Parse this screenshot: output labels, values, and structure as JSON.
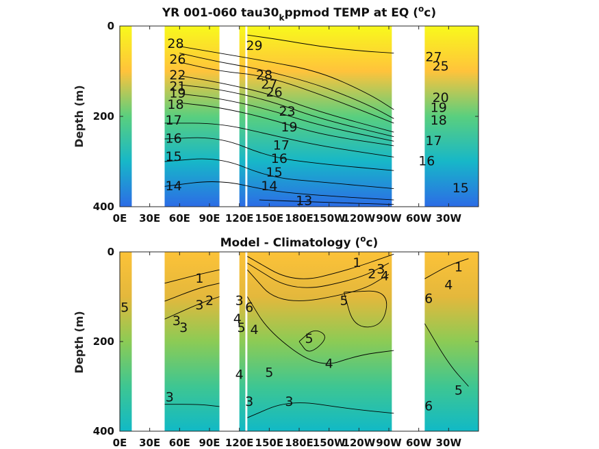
{
  "chart_data": [
    {
      "type": "heatmap",
      "title": "YR 001-060 tau30",
      "title_sub": "k",
      "title_rest": "ppmod TEMP at EQ (",
      "title_unit_sup": "o",
      "title_unit": "c)",
      "ylabel": "Depth (m)",
      "xlabel": "",
      "x_tick_labels": [
        "0E",
        "30E",
        "60E",
        "90E",
        "120E",
        "150E",
        "180E",
        "150W",
        "120W",
        "90W",
        "60W",
        "30W"
      ],
      "y_tick_labels": [
        "0",
        "200",
        "400"
      ],
      "xlim": [
        0,
        360
      ],
      "ylim": [
        400,
        0
      ],
      "no_data_gaps": [
        [
          12,
          45
        ],
        [
          100,
          120
        ],
        [
          126,
          128
        ],
        [
          273,
          306
        ]
      ],
      "colorscale": [
        "#2c6ce6",
        "#17b7c8",
        "#5acf7e",
        "#ffc33b",
        "#f8f91c"
      ],
      "contours": [
        {
          "label": "29",
          "path": [
            [
              128,
              20
            ],
            [
              160,
              30
            ],
            [
              200,
              45
            ],
            [
              240,
              55
            ],
            [
              275,
              60
            ]
          ]
        },
        {
          "label": "28",
          "path": [
            [
              60,
              45
            ],
            [
              100,
              60
            ],
            [
              140,
              75
            ],
            [
              200,
              100
            ],
            [
              250,
              150
            ],
            [
              275,
              185
            ]
          ]
        },
        {
          "label": "27",
          "path": [
            [
              60,
              60
            ],
            [
              100,
              80
            ],
            [
              140,
              95
            ],
            [
              200,
              130
            ],
            [
              250,
              175
            ],
            [
              275,
              205
            ]
          ]
        },
        {
          "label": "26",
          "path": [
            [
              60,
              80
            ],
            [
              100,
              100
            ],
            [
              145,
              110
            ],
            [
              200,
              150
            ],
            [
              275,
              215
            ]
          ]
        },
        {
          "label": "22",
          "path": [
            [
              60,
              110
            ],
            [
              100,
              125
            ],
            [
              150,
              150
            ],
            [
              200,
              190
            ],
            [
              275,
              235
            ]
          ]
        },
        {
          "label": "21",
          "path": [
            [
              60,
              130
            ],
            [
              100,
              140
            ],
            [
              150,
              165
            ],
            [
              200,
              205
            ],
            [
              275,
              245
            ]
          ]
        },
        {
          "label": "19",
          "path": [
            [
              60,
              150
            ],
            [
              100,
              160
            ],
            [
              150,
              185
            ],
            [
              200,
              220
            ],
            [
              275,
              255
            ]
          ]
        },
        {
          "label": "18",
          "path": [
            [
              60,
              170
            ],
            [
              100,
              180
            ],
            [
              150,
              205
            ],
            [
              200,
              240
            ],
            [
              275,
              265
            ]
          ]
        },
        {
          "label": "17",
          "path": [
            [
              45,
              215
            ],
            [
              100,
              215
            ],
            [
              150,
              240
            ],
            [
              200,
              265
            ],
            [
              275,
              290
            ]
          ]
        },
        {
          "label": "16",
          "path": [
            [
              45,
              250
            ],
            [
              100,
              245
            ],
            [
              150,
              290
            ],
            [
              200,
              305
            ],
            [
              275,
              320
            ]
          ]
        },
        {
          "label": "15",
          "path": [
            [
              45,
              300
            ],
            [
              100,
              290
            ],
            [
              150,
              335
            ],
            [
              200,
              345
            ],
            [
              275,
              360
            ]
          ]
        },
        {
          "label": "14",
          "path": [
            [
              45,
              355
            ],
            [
              100,
              340
            ],
            [
              150,
              365
            ],
            [
              200,
              375
            ],
            [
              275,
              385
            ]
          ]
        },
        {
          "label": "13",
          "path": [
            [
              140,
              385
            ],
            [
              200,
              390
            ],
            [
              275,
              395
            ]
          ]
        }
      ],
      "labels": [
        {
          "text": "29",
          "x": 135,
          "y": 45
        },
        {
          "text": "28",
          "x": 56,
          "y": 40
        },
        {
          "text": "26",
          "x": 58,
          "y": 75
        },
        {
          "text": "22",
          "x": 58,
          "y": 110
        },
        {
          "text": "21",
          "x": 58,
          "y": 135
        },
        {
          "text": "19",
          "x": 58,
          "y": 150
        },
        {
          "text": "18",
          "x": 56,
          "y": 175
        },
        {
          "text": "17",
          "x": 54,
          "y": 210
        },
        {
          "text": "16",
          "x": 54,
          "y": 250
        },
        {
          "text": "15",
          "x": 54,
          "y": 290
        },
        {
          "text": "14",
          "x": 54,
          "y": 355
        },
        {
          "text": "28",
          "x": 145,
          "y": 110
        },
        {
          "text": "27",
          "x": 150,
          "y": 130
        },
        {
          "text": "26",
          "x": 155,
          "y": 148
        },
        {
          "text": "23",
          "x": 168,
          "y": 190
        },
        {
          "text": "19",
          "x": 170,
          "y": 225
        },
        {
          "text": "17",
          "x": 162,
          "y": 265
        },
        {
          "text": "16",
          "x": 160,
          "y": 295
        },
        {
          "text": "15",
          "x": 155,
          "y": 325
        },
        {
          "text": "14",
          "x": 150,
          "y": 355
        },
        {
          "text": "13",
          "x": 185,
          "y": 388
        },
        {
          "text": "27",
          "x": 315,
          "y": 70
        },
        {
          "text": "25",
          "x": 322,
          "y": 90
        },
        {
          "text": "20",
          "x": 322,
          "y": 160
        },
        {
          "text": "19",
          "x": 320,
          "y": 182
        },
        {
          "text": "18",
          "x": 320,
          "y": 210
        },
        {
          "text": "17",
          "x": 315,
          "y": 255
        },
        {
          "text": "16",
          "x": 308,
          "y": 300
        },
        {
          "text": "15",
          "x": 342,
          "y": 360
        }
      ]
    },
    {
      "type": "heatmap",
      "title": "Model - Climatology (",
      "title_unit_sup": "o",
      "title_unit": "c)",
      "ylabel": "Depth (m)",
      "xlabel": "",
      "x_tick_labels": [
        "0E",
        "30E",
        "60E",
        "90E",
        "120E",
        "150E",
        "180E",
        "150W",
        "120W",
        "90W",
        "60W",
        "30W"
      ],
      "y_tick_labels": [
        "0",
        "200",
        "400"
      ],
      "xlim": [
        0,
        360
      ],
      "ylim": [
        400,
        0
      ],
      "no_data_gaps": [
        [
          12,
          45
        ],
        [
          100,
          120
        ],
        [
          126,
          128
        ],
        [
          273,
          306
        ]
      ],
      "colorscale": [
        "#11b9c6",
        "#3ec692",
        "#8ccb55",
        "#e4b83c",
        "#fcc238"
      ],
      "contours": [
        {
          "label": "1",
          "path": [
            [
              45,
              70
            ],
            [
              80,
              50
            ],
            [
              100,
              40
            ]
          ]
        },
        {
          "label": "2",
          "path": [
            [
              45,
              110
            ],
            [
              80,
              80
            ],
            [
              100,
              70
            ]
          ]
        },
        {
          "label": "3",
          "path": [
            [
              45,
              150
            ],
            [
              80,
              115
            ],
            [
              100,
              100
            ]
          ]
        },
        {
          "label": "3",
          "path": [
            [
              45,
              340
            ],
            [
              80,
              340
            ],
            [
              100,
              345
            ]
          ]
        },
        {
          "label": "1",
          "path": [
            [
              128,
              10
            ],
            [
              175,
              70
            ],
            [
              230,
              40
            ],
            [
              275,
              5
            ]
          ]
        },
        {
          "label": "2",
          "path": [
            [
              128,
              25
            ],
            [
              175,
              90
            ],
            [
              240,
              60
            ],
            [
              270,
              25
            ]
          ]
        },
        {
          "label": "3",
          "path": [
            [
              128,
              40
            ],
            [
              160,
              120
            ],
            [
              240,
              90
            ],
            [
              270,
              50
            ]
          ]
        },
        {
          "label": "5",
          "path": [
            [
              180,
              200
            ],
            [
              195,
              170
            ],
            [
              210,
              190
            ],
            [
              190,
              230
            ],
            [
              180,
              200
            ]
          ]
        },
        {
          "label": "5",
          "path": [
            [
              225,
              90
            ],
            [
              270,
              85
            ],
            [
              265,
              165
            ],
            [
              235,
              170
            ],
            [
              225,
              90
            ]
          ]
        },
        {
          "label": "4",
          "path": [
            [
              128,
              100
            ],
            [
              150,
              180
            ],
            [
              200,
              260
            ],
            [
              240,
              230
            ],
            [
              275,
              220
            ]
          ]
        },
        {
          "label": "3",
          "path": [
            [
              128,
              370
            ],
            [
              170,
              330
            ],
            [
              230,
              350
            ],
            [
              275,
              360
            ]
          ]
        },
        {
          "label": "1",
          "path": [
            [
              306,
              60
            ],
            [
              330,
              30
            ],
            [
              350,
              15
            ]
          ]
        },
        {
          "label": "5",
          "path": [
            [
              306,
              160
            ],
            [
              330,
              250
            ],
            [
              350,
              300
            ]
          ]
        }
      ],
      "labels": [
        {
          "text": "5",
          "x": 5,
          "y": 125
        },
        {
          "text": "1",
          "x": 80,
          "y": 60
        },
        {
          "text": "2",
          "x": 90,
          "y": 110
        },
        {
          "text": "3",
          "x": 80,
          "y": 120
        },
        {
          "text": "3",
          "x": 57,
          "y": 155
        },
        {
          "text": "3",
          "x": 64,
          "y": 170
        },
        {
          "text": "3",
          "x": 50,
          "y": 325
        },
        {
          "text": "3",
          "x": 120,
          "y": 110
        },
        {
          "text": "4",
          "x": 118,
          "y": 150
        },
        {
          "text": "5",
          "x": 122,
          "y": 170
        },
        {
          "text": "4",
          "x": 120,
          "y": 275
        },
        {
          "text": "6",
          "x": 130,
          "y": 125
        },
        {
          "text": "4",
          "x": 135,
          "y": 175
        },
        {
          "text": "5",
          "x": 150,
          "y": 270
        },
        {
          "text": "5",
          "x": 190,
          "y": 195
        },
        {
          "text": "4",
          "x": 210,
          "y": 250
        },
        {
          "text": "3",
          "x": 170,
          "y": 335
        },
        {
          "text": "3",
          "x": 130,
          "y": 335
        },
        {
          "text": "1",
          "x": 238,
          "y": 25
        },
        {
          "text": "2",
          "x": 253,
          "y": 50
        },
        {
          "text": "3",
          "x": 262,
          "y": 40
        },
        {
          "text": "4",
          "x": 266,
          "y": 55
        },
        {
          "text": "5",
          "x": 225,
          "y": 110
        },
        {
          "text": "1",
          "x": 340,
          "y": 35
        },
        {
          "text": "4",
          "x": 330,
          "y": 75
        },
        {
          "text": "6",
          "x": 310,
          "y": 105
        },
        {
          "text": "5",
          "x": 340,
          "y": 310
        },
        {
          "text": "6",
          "x": 310,
          "y": 345
        }
      ]
    }
  ]
}
